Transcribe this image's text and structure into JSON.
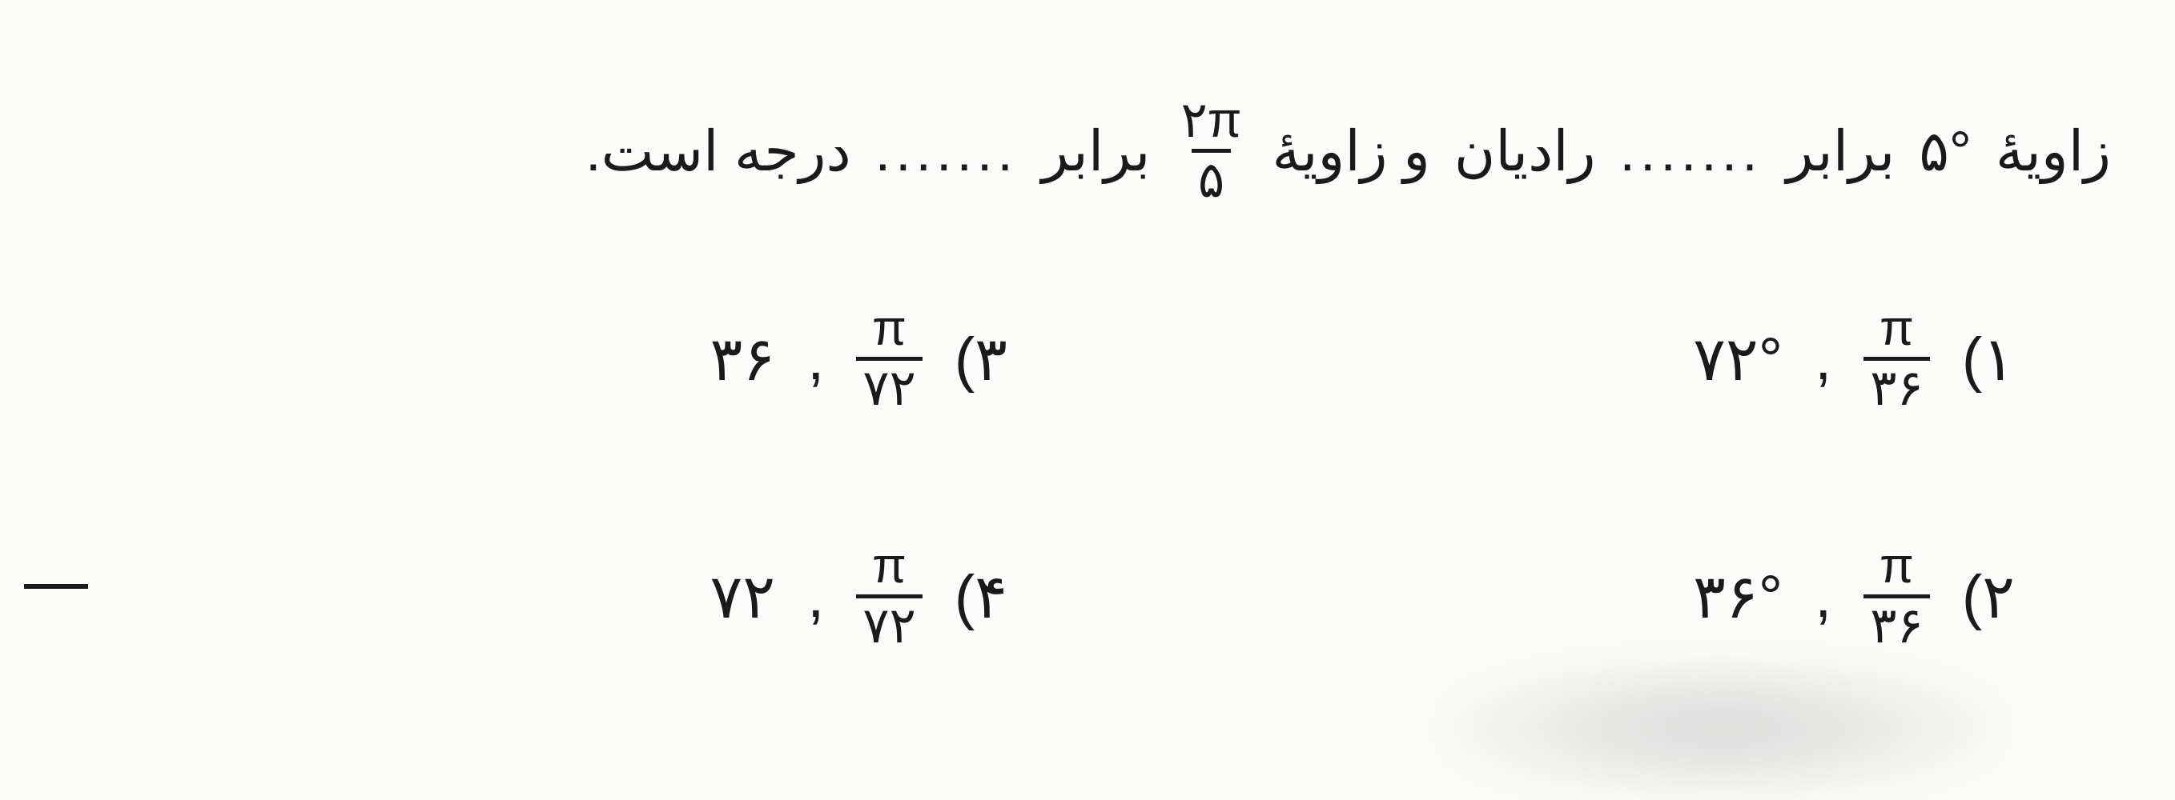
{
  "question": {
    "w1": "زاویهٔ",
    "w2": "۵°",
    "w3": "برابر",
    "blank1": ".......",
    "w4": "رادیان",
    "w5": "و زاویهٔ",
    "frac_main": {
      "num": "۲π",
      "den": "۵"
    },
    "w6": "برابر",
    "blank2": ".......",
    "w7": "درجه است."
  },
  "options": {
    "opt1": {
      "label": "۱)",
      "frac": {
        "num": "π",
        "den": "۳۶"
      },
      "sep": ",",
      "val": "۷۲°"
    },
    "opt2": {
      "label": "۲)",
      "frac": {
        "num": "π",
        "den": "۳۶"
      },
      "sep": ",",
      "val": "۳۶°"
    },
    "opt3": {
      "label": "۳)",
      "frac": {
        "num": "π",
        "den": "۷۲"
      },
      "sep": ",",
      "val": "۳۶"
    },
    "opt4": {
      "label": "۴)",
      "frac": {
        "num": "π",
        "den": "۷۲"
      },
      "sep": ",",
      "val": "۷۲"
    }
  },
  "colors": {
    "ink": "#1a1a1a",
    "paper": "#fcfcfa"
  }
}
